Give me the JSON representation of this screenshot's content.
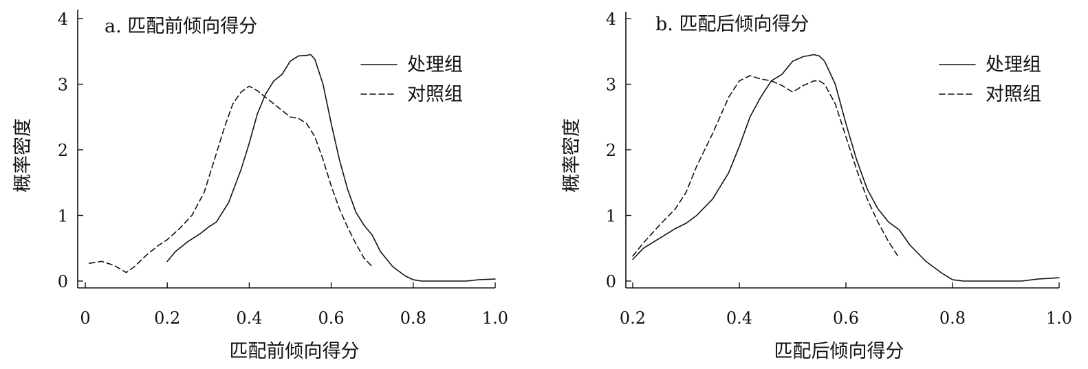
{
  "chart_data": [
    {
      "type": "line",
      "title": "a. 匹配前倾向得分",
      "xlabel": "匹配前倾向得分",
      "ylabel": "概率密度",
      "xlim": [
        0,
        1.0
      ],
      "ylim": [
        0,
        4
      ],
      "xticks": [
        0,
        0.2,
        0.4,
        0.6,
        0.8,
        1.0
      ],
      "xtick_labels": [
        "0",
        "0.2",
        "0.4",
        "0.6",
        "0.8",
        "1.0"
      ],
      "yticks": [
        0,
        1,
        2,
        3,
        4
      ],
      "ytick_labels": [
        "0",
        "1",
        "2",
        "3",
        "4"
      ],
      "legend_position": "top-right",
      "series": [
        {
          "name": "处理组",
          "style": "solid",
          "color": "#111111",
          "points": [
            [
              0.2,
              0.3
            ],
            [
              0.22,
              0.45
            ],
            [
              0.25,
              0.6
            ],
            [
              0.28,
              0.72
            ],
            [
              0.3,
              0.82
            ],
            [
              0.32,
              0.9
            ],
            [
              0.35,
              1.2
            ],
            [
              0.38,
              1.7
            ],
            [
              0.4,
              2.1
            ],
            [
              0.42,
              2.55
            ],
            [
              0.44,
              2.85
            ],
            [
              0.46,
              3.05
            ],
            [
              0.48,
              3.15
            ],
            [
              0.5,
              3.35
            ],
            [
              0.52,
              3.43
            ],
            [
              0.54,
              3.44
            ],
            [
              0.55,
              3.45
            ],
            [
              0.56,
              3.38
            ],
            [
              0.58,
              3.0
            ],
            [
              0.6,
              2.4
            ],
            [
              0.62,
              1.85
            ],
            [
              0.64,
              1.4
            ],
            [
              0.66,
              1.05
            ],
            [
              0.68,
              0.85
            ],
            [
              0.7,
              0.7
            ],
            [
              0.72,
              0.45
            ],
            [
              0.75,
              0.22
            ],
            [
              0.78,
              0.08
            ],
            [
              0.8,
              0.02
            ],
            [
              0.82,
              0.0
            ],
            [
              0.85,
              0.0
            ],
            [
              0.9,
              0.0
            ],
            [
              0.93,
              0.0
            ],
            [
              0.96,
              0.02
            ],
            [
              1.0,
              0.03
            ]
          ]
        },
        {
          "name": "对照组",
          "style": "dashed",
          "color": "#111111",
          "points": [
            [
              0.01,
              0.27
            ],
            [
              0.04,
              0.3
            ],
            [
              0.07,
              0.24
            ],
            [
              0.1,
              0.13
            ],
            [
              0.12,
              0.22
            ],
            [
              0.15,
              0.4
            ],
            [
              0.18,
              0.55
            ],
            [
              0.2,
              0.63
            ],
            [
              0.23,
              0.8
            ],
            [
              0.26,
              1.0
            ],
            [
              0.29,
              1.35
            ],
            [
              0.31,
              1.75
            ],
            [
              0.34,
              2.35
            ],
            [
              0.36,
              2.7
            ],
            [
              0.38,
              2.88
            ],
            [
              0.4,
              2.97
            ],
            [
              0.42,
              2.9
            ],
            [
              0.44,
              2.8
            ],
            [
              0.46,
              2.7
            ],
            [
              0.48,
              2.6
            ],
            [
              0.5,
              2.5
            ],
            [
              0.52,
              2.48
            ],
            [
              0.54,
              2.4
            ],
            [
              0.56,
              2.2
            ],
            [
              0.58,
              1.85
            ],
            [
              0.6,
              1.45
            ],
            [
              0.62,
              1.1
            ],
            [
              0.64,
              0.82
            ],
            [
              0.66,
              0.57
            ],
            [
              0.68,
              0.35
            ],
            [
              0.7,
              0.22
            ]
          ]
        }
      ]
    },
    {
      "type": "line",
      "title": "b. 匹配后倾向得分",
      "xlabel": "匹配后倾向得分",
      "ylabel": "概率密度",
      "xlim": [
        0.2,
        1.0
      ],
      "ylim": [
        0,
        4
      ],
      "xticks": [
        0.2,
        0.4,
        0.6,
        0.8,
        1.0
      ],
      "xtick_labels": [
        "0.2",
        "0.4",
        "0.6",
        "0.8",
        "1.0"
      ],
      "yticks": [
        0,
        1,
        2,
        3,
        4
      ],
      "ytick_labels": [
        "0",
        "1",
        "2",
        "3",
        "4"
      ],
      "legend_position": "top-right",
      "series": [
        {
          "name": "处理组",
          "style": "solid",
          "color": "#111111",
          "points": [
            [
              0.2,
              0.33
            ],
            [
              0.22,
              0.5
            ],
            [
              0.25,
              0.65
            ],
            [
              0.28,
              0.8
            ],
            [
              0.3,
              0.88
            ],
            [
              0.32,
              1.0
            ],
            [
              0.35,
              1.25
            ],
            [
              0.38,
              1.65
            ],
            [
              0.4,
              2.05
            ],
            [
              0.42,
              2.5
            ],
            [
              0.44,
              2.8
            ],
            [
              0.46,
              3.05
            ],
            [
              0.48,
              3.15
            ],
            [
              0.5,
              3.35
            ],
            [
              0.52,
              3.42
            ],
            [
              0.54,
              3.45
            ],
            [
              0.55,
              3.43
            ],
            [
              0.56,
              3.35
            ],
            [
              0.58,
              3.0
            ],
            [
              0.6,
              2.4
            ],
            [
              0.62,
              1.85
            ],
            [
              0.64,
              1.4
            ],
            [
              0.66,
              1.1
            ],
            [
              0.68,
              0.9
            ],
            [
              0.7,
              0.78
            ],
            [
              0.72,
              0.55
            ],
            [
              0.75,
              0.3
            ],
            [
              0.78,
              0.12
            ],
            [
              0.8,
              0.02
            ],
            [
              0.82,
              0.0
            ],
            [
              0.85,
              0.0
            ],
            [
              0.9,
              0.0
            ],
            [
              0.93,
              0.0
            ],
            [
              0.96,
              0.03
            ],
            [
              1.0,
              0.05
            ]
          ]
        },
        {
          "name": "对照组",
          "style": "dashed",
          "color": "#111111",
          "points": [
            [
              0.2,
              0.38
            ],
            [
              0.22,
              0.58
            ],
            [
              0.25,
              0.85
            ],
            [
              0.28,
              1.1
            ],
            [
              0.3,
              1.35
            ],
            [
              0.32,
              1.75
            ],
            [
              0.35,
              2.25
            ],
            [
              0.38,
              2.8
            ],
            [
              0.4,
              3.05
            ],
            [
              0.42,
              3.13
            ],
            [
              0.44,
              3.08
            ],
            [
              0.46,
              3.05
            ],
            [
              0.48,
              2.98
            ],
            [
              0.5,
              2.88
            ],
            [
              0.52,
              2.98
            ],
            [
              0.54,
              3.05
            ],
            [
              0.55,
              3.05
            ],
            [
              0.56,
              3.0
            ],
            [
              0.58,
              2.7
            ],
            [
              0.6,
              2.2
            ],
            [
              0.62,
              1.7
            ],
            [
              0.64,
              1.25
            ],
            [
              0.66,
              0.9
            ],
            [
              0.68,
              0.6
            ],
            [
              0.7,
              0.35
            ]
          ]
        }
      ]
    }
  ]
}
